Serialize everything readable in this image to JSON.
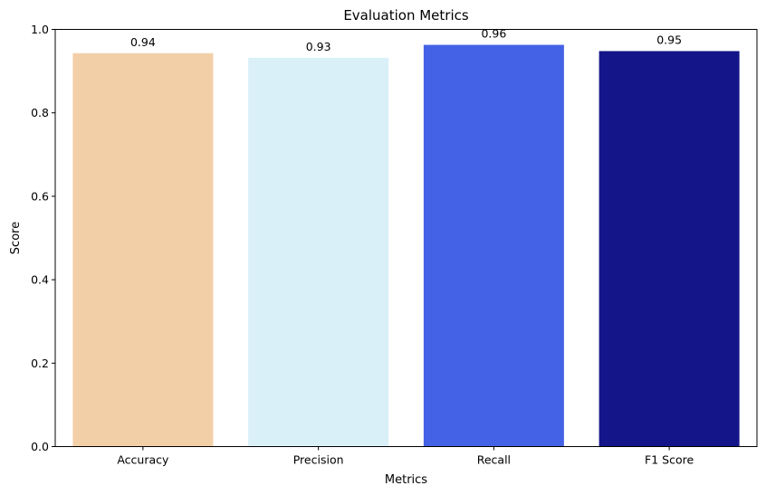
{
  "chart_data": {
    "type": "bar",
    "title": "Evaluation Metrics",
    "xlabel": "Metrics",
    "ylabel": "Score",
    "categories": [
      "Accuracy",
      "Precision",
      "Recall",
      "F1 Score"
    ],
    "values": [
      0.943,
      0.932,
      0.963,
      0.948
    ],
    "value_labels": [
      "0.94",
      "0.93",
      "0.96",
      "0.95"
    ],
    "colors": [
      "#f3cfa7",
      "#d9f0f9",
      "#4462e5",
      "#131589"
    ],
    "ylim": [
      0,
      1
    ],
    "yticks": [
      0.0,
      0.2,
      0.4,
      0.6,
      0.8,
      1.0
    ],
    "ytick_labels": [
      "0.0",
      "0.2",
      "0.4",
      "0.6",
      "0.8",
      "1.0"
    ],
    "grid": false,
    "legend": "none"
  }
}
